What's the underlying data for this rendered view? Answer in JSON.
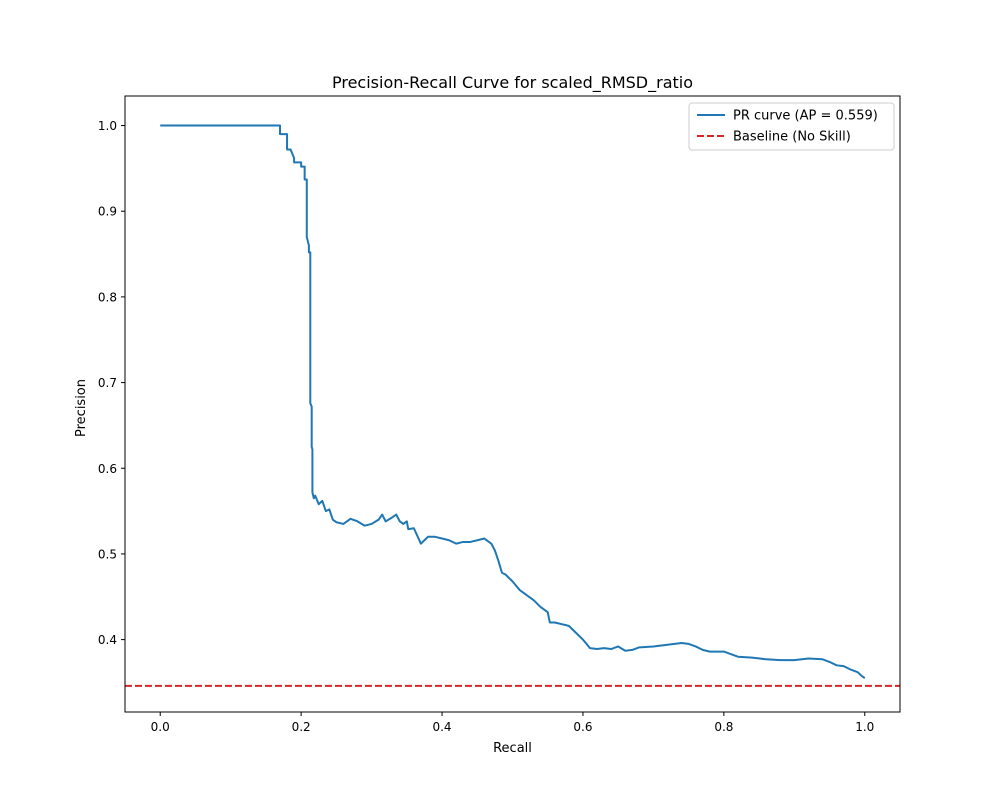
{
  "chart_data": {
    "type": "line",
    "title": "Precision-Recall Curve for scaled_RMSD_ratio",
    "xlabel": "Recall",
    "ylabel": "Precision",
    "xlim": [
      -0.05,
      1.05
    ],
    "ylim": [
      0.3155,
      1.0345
    ],
    "xticks": [
      "0.0",
      "0.2",
      "0.4",
      "0.6",
      "0.8",
      "1.0"
    ],
    "xtick_values": [
      0.0,
      0.2,
      0.4,
      0.6,
      0.8,
      1.0
    ],
    "yticks": [
      "0.4",
      "0.5",
      "0.6",
      "0.7",
      "0.8",
      "0.9",
      "1.0"
    ],
    "ytick_values": [
      0.4,
      0.5,
      0.6,
      0.7,
      0.8,
      0.9,
      1.0
    ],
    "grid": false,
    "legend_position": "top-right",
    "series": [
      {
        "name": "PR curve (AP = 0.559)",
        "color": "#1f77b4",
        "style": "solid",
        "x": [
          0.0,
          0.17,
          0.17,
          0.18,
          0.18,
          0.185,
          0.19,
          0.19,
          0.2,
          0.2,
          0.205,
          0.205,
          0.208,
          0.208,
          0.211,
          0.211,
          0.213,
          0.213,
          0.215,
          0.215,
          0.216,
          0.216,
          0.218,
          0.22,
          0.225,
          0.23,
          0.235,
          0.24,
          0.245,
          0.25,
          0.26,
          0.27,
          0.28,
          0.29,
          0.3,
          0.31,
          0.315,
          0.32,
          0.33,
          0.335,
          0.34,
          0.345,
          0.35,
          0.352,
          0.36,
          0.37,
          0.38,
          0.39,
          0.4,
          0.41,
          0.42,
          0.43,
          0.44,
          0.45,
          0.46,
          0.47,
          0.475,
          0.48,
          0.485,
          0.49,
          0.5,
          0.51,
          0.52,
          0.53,
          0.54,
          0.55,
          0.553,
          0.56,
          0.57,
          0.58,
          0.59,
          0.6,
          0.61,
          0.62,
          0.63,
          0.64,
          0.65,
          0.66,
          0.67,
          0.68,
          0.7,
          0.72,
          0.74,
          0.75,
          0.76,
          0.77,
          0.78,
          0.8,
          0.82,
          0.84,
          0.86,
          0.88,
          0.9,
          0.92,
          0.94,
          0.95,
          0.96,
          0.97,
          0.98,
          0.99,
          0.995,
          1.0
        ],
        "y": [
          1.0,
          1.0,
          0.99,
          0.99,
          0.972,
          0.972,
          0.962,
          0.957,
          0.957,
          0.952,
          0.952,
          0.937,
          0.937,
          0.87,
          0.86,
          0.852,
          0.852,
          0.676,
          0.672,
          0.625,
          0.622,
          0.572,
          0.565,
          0.568,
          0.558,
          0.562,
          0.55,
          0.552,
          0.54,
          0.537,
          0.535,
          0.541,
          0.538,
          0.533,
          0.535,
          0.54,
          0.546,
          0.538,
          0.543,
          0.546,
          0.538,
          0.535,
          0.538,
          0.529,
          0.53,
          0.512,
          0.52,
          0.52,
          0.518,
          0.516,
          0.512,
          0.514,
          0.514,
          0.516,
          0.518,
          0.512,
          0.504,
          0.492,
          0.478,
          0.476,
          0.468,
          0.458,
          0.452,
          0.446,
          0.438,
          0.432,
          0.42,
          0.42,
          0.418,
          0.416,
          0.408,
          0.4,
          0.39,
          0.389,
          0.39,
          0.389,
          0.392,
          0.387,
          0.388,
          0.391,
          0.392,
          0.394,
          0.396,
          0.395,
          0.392,
          0.388,
          0.386,
          0.386,
          0.38,
          0.379,
          0.377,
          0.376,
          0.376,
          0.378,
          0.377,
          0.374,
          0.37,
          0.369,
          0.365,
          0.362,
          0.358,
          0.355
        ]
      },
      {
        "name": "Baseline (No Skill)",
        "color": "#d62728",
        "style": "dashed",
        "x": [
          -0.05,
          1.05
        ],
        "y": [
          0.346,
          0.346
        ]
      }
    ]
  }
}
